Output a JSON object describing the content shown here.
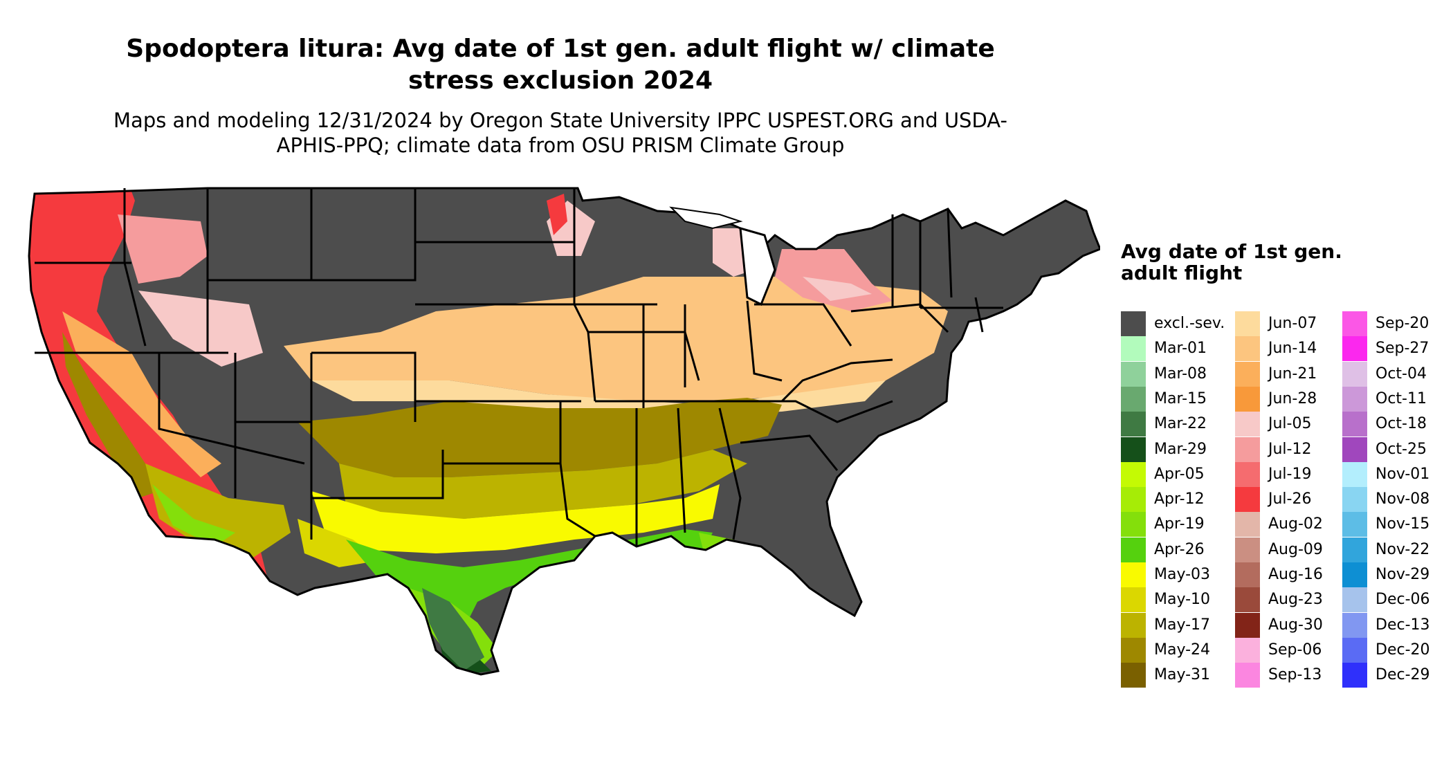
{
  "title": "Spodoptera litura: Avg date of 1st gen. adult flight w/ climate stress exclusion 2024",
  "subtitle": "Maps and modeling 12/31/2024 by Oregon State University IPPC USPEST.ORG and USDA-APHIS-PPQ; climate data from OSU PRISM Climate Group",
  "legend": {
    "title": "Avg date of 1st gen. adult flight",
    "columns": [
      [
        {
          "label": "excl.-sev.",
          "color": "#4d4d4d"
        },
        {
          "label": "Mar-01",
          "color": "#b2fbbc"
        },
        {
          "label": "Mar-08",
          "color": "#8fd19b"
        },
        {
          "label": "Mar-15",
          "color": "#69a96f"
        },
        {
          "label": "Mar-22",
          "color": "#3f7a43"
        },
        {
          "label": "Mar-29",
          "color": "#15501a"
        },
        {
          "label": "Apr-05",
          "color": "#c4fa04"
        },
        {
          "label": "Apr-12",
          "color": "#a6ec06"
        },
        {
          "label": "Apr-19",
          "color": "#84df0b"
        },
        {
          "label": "Apr-26",
          "color": "#55d10e"
        },
        {
          "label": "May-03",
          "color": "#f9fa00"
        },
        {
          "label": "May-10",
          "color": "#dbd700"
        },
        {
          "label": "May-17",
          "color": "#bcb300"
        },
        {
          "label": "May-24",
          "color": "#9e8800"
        },
        {
          "label": "May-31",
          "color": "#7a6000"
        }
      ],
      [
        {
          "label": "Jun-07",
          "color": "#fddb9d"
        },
        {
          "label": "Jun-14",
          "color": "#fcc57f"
        },
        {
          "label": "Jun-21",
          "color": "#fbaf5b"
        },
        {
          "label": "Jun-28",
          "color": "#f8993a"
        },
        {
          "label": "Jul-05",
          "color": "#f7c9c8"
        },
        {
          "label": "Jul-12",
          "color": "#f59c9d"
        },
        {
          "label": "Jul-19",
          "color": "#f56c6f"
        },
        {
          "label": "Jul-26",
          "color": "#f53a3e"
        },
        {
          "label": "Aug-02",
          "color": "#e3b6a9"
        },
        {
          "label": "Aug-09",
          "color": "#cb8f82"
        },
        {
          "label": "Aug-16",
          "color": "#b36c5e"
        },
        {
          "label": "Aug-23",
          "color": "#9a4a3b"
        },
        {
          "label": "Aug-30",
          "color": "#822418"
        },
        {
          "label": "Sep-06",
          "color": "#fbb1dd"
        },
        {
          "label": "Sep-13",
          "color": "#fb86e0"
        }
      ],
      [
        {
          "label": "Sep-20",
          "color": "#fb57e6"
        },
        {
          "label": "Sep-27",
          "color": "#fb28ee"
        },
        {
          "label": "Oct-04",
          "color": "#dfc0e6"
        },
        {
          "label": "Oct-11",
          "color": "#cc98d9"
        },
        {
          "label": "Oct-18",
          "color": "#b870cb"
        },
        {
          "label": "Oct-25",
          "color": "#a047bd"
        },
        {
          "label": "Nov-01",
          "color": "#b3eefd"
        },
        {
          "label": "Nov-08",
          "color": "#89d5f2"
        },
        {
          "label": "Nov-15",
          "color": "#5dbde6"
        },
        {
          "label": "Nov-22",
          "color": "#31a5dc"
        },
        {
          "label": "Nov-29",
          "color": "#0e8fd3"
        },
        {
          "label": "Dec-06",
          "color": "#a6c3ec"
        },
        {
          "label": "Dec-13",
          "color": "#8197f1"
        },
        {
          "label": "Dec-20",
          "color": "#5a6bf4"
        },
        {
          "label": "Dec-29",
          "color": "#2f30fb"
        }
      ]
    ]
  },
  "map_zone_colors": {
    "excluded": "#4d4d4d",
    "gulf_coast_green": "#55d10e",
    "deep_south_yellow": "#f9fa00",
    "south_olive": "#9e8800",
    "midwest_peach": "#fcc57f",
    "northern_pink": "#f59c9d",
    "west_red": "#f53a3e",
    "florida_dark_green": "#15501a"
  }
}
